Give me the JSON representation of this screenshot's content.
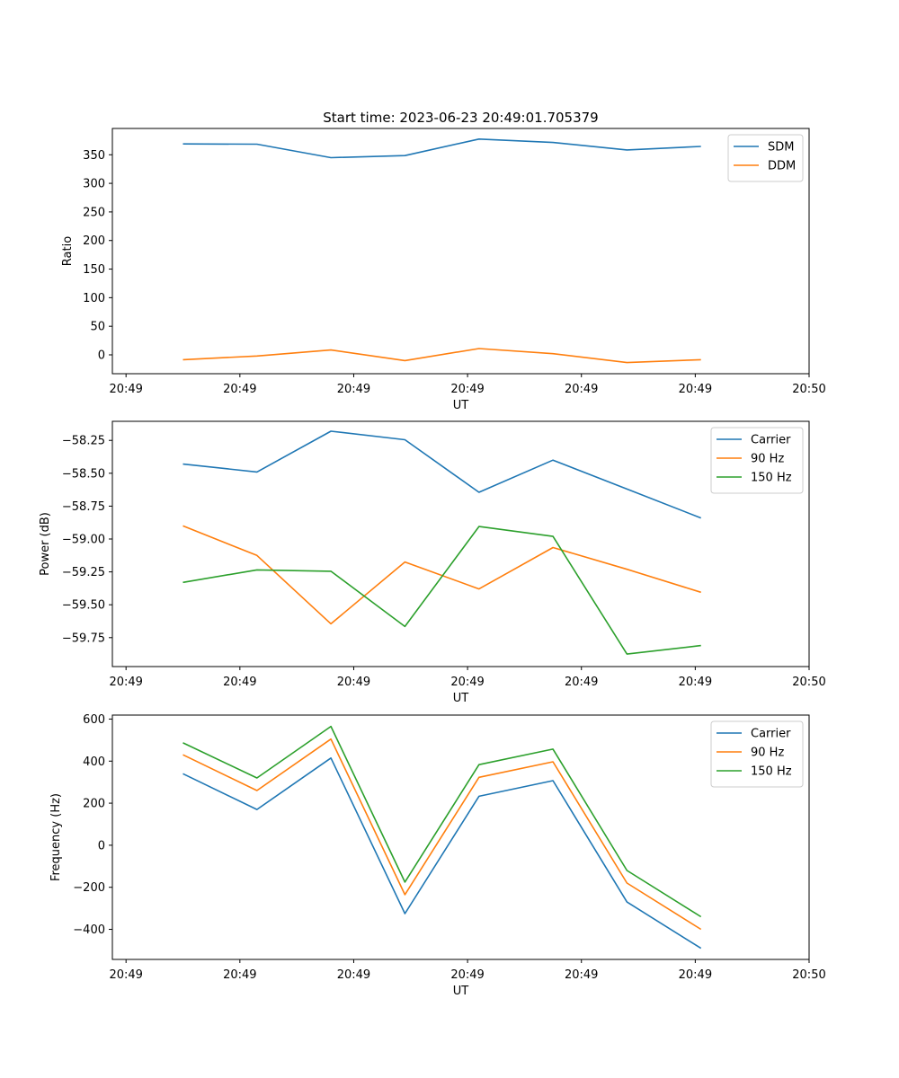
{
  "figure": {
    "title": "Start time: 2023-06-23 20:49:01.705379"
  },
  "chart_data": [
    {
      "type": "line",
      "title": "Start time: 2023-06-23 20:49:01.705379",
      "xlabel": "UT",
      "ylabel": "Ratio",
      "x_tick_labels": [
        "20:49",
        "20:49",
        "20:49",
        "20:49",
        "20:49",
        "20:49",
        "20:50"
      ],
      "x_tick_values": [
        0,
        1,
        2,
        3,
        4,
        5,
        6
      ],
      "xlim": [
        -0.12,
        6.0
      ],
      "ylim": [
        -33,
        396
      ],
      "y_ticks": [
        0,
        50,
        100,
        150,
        200,
        250,
        300,
        350
      ],
      "y_tick_labels": [
        "0",
        "50",
        "100",
        "150",
        "200",
        "250",
        "300",
        "350"
      ],
      "x": [
        0.5,
        1.15,
        1.8,
        2.45,
        3.1,
        3.75,
        4.4,
        5.05
      ],
      "series": [
        {
          "name": "SDM",
          "color": "#1f77b4",
          "values": [
            369,
            368.5,
            345,
            348.5,
            377.5,
            371.5,
            358.5,
            364.5
          ]
        },
        {
          "name": "DDM",
          "color": "#ff7f0e",
          "values": [
            -8.5,
            -2,
            8.5,
            -10,
            11,
            2,
            -13.5,
            -8.5
          ]
        }
      ],
      "legend": "top-right",
      "grid": false
    },
    {
      "type": "line",
      "title": "",
      "xlabel": "UT",
      "ylabel": "Power (dB)",
      "x_tick_labels": [
        "20:49",
        "20:49",
        "20:49",
        "20:49",
        "20:49",
        "20:49",
        "20:50"
      ],
      "x_tick_values": [
        0,
        1,
        2,
        3,
        4,
        5,
        6
      ],
      "xlim": [
        -0.12,
        6.0
      ],
      "ylim": [
        -59.97,
        -58.105
      ],
      "y_ticks": [
        -59.75,
        -59.5,
        -59.25,
        -59.0,
        -58.75,
        -58.5,
        -58.25
      ],
      "y_tick_labels": [
        "−59.75",
        "−59.50",
        "−59.25",
        "−59.00",
        "−58.75",
        "−58.50",
        "−58.25"
      ],
      "x": [
        0.5,
        1.15,
        1.8,
        2.45,
        3.1,
        3.75,
        4.4,
        5.05
      ],
      "series": [
        {
          "name": "Carrier",
          "color": "#1f77b4",
          "values": [
            -58.43,
            -58.49,
            -58.18,
            -58.245,
            -58.645,
            -58.4,
            -58.62,
            -58.84
          ]
        },
        {
          "name": "90 Hz",
          "color": "#ff7f0e",
          "values": [
            -58.9,
            -59.125,
            -59.645,
            -59.175,
            -59.38,
            -59.065,
            -59.23,
            -59.405
          ]
        },
        {
          "name": "150 Hz",
          "color": "#2ca02c",
          "values": [
            -59.33,
            -59.235,
            -59.245,
            -59.665,
            -58.905,
            -58.98,
            -59.875,
            -59.81
          ]
        }
      ],
      "legend": "top-right",
      "grid": false
    },
    {
      "type": "line",
      "title": "",
      "xlabel": "UT",
      "ylabel": "Frequency (Hz)",
      "x_tick_labels": [
        "20:49",
        "20:49",
        "20:49",
        "20:49",
        "20:49",
        "20:49",
        "20:50"
      ],
      "x_tick_values": [
        0,
        1,
        2,
        3,
        4,
        5,
        6
      ],
      "xlim": [
        -0.12,
        6.0
      ],
      "ylim": [
        -543,
        619
      ],
      "y_ticks": [
        -400,
        -200,
        0,
        200,
        400,
        600
      ],
      "y_tick_labels": [
        "−400",
        "−200",
        "0",
        "200",
        "400",
        "600"
      ],
      "x": [
        0.5,
        1.15,
        1.8,
        2.45,
        3.1,
        3.75,
        4.4,
        5.05
      ],
      "series": [
        {
          "name": "Carrier",
          "color": "#1f77b4",
          "values": [
            340,
            170,
            415,
            -325,
            233,
            307,
            -270,
            -490
          ]
        },
        {
          "name": "90 Hz",
          "color": "#ff7f0e",
          "values": [
            430,
            260,
            505,
            -235,
            323,
            397,
            -180,
            -400
          ]
        },
        {
          "name": "150 Hz",
          "color": "#2ca02c",
          "values": [
            487,
            320,
            565,
            -175,
            383,
            457,
            -120,
            -340
          ]
        }
      ],
      "legend": "top-right",
      "grid": false
    }
  ]
}
